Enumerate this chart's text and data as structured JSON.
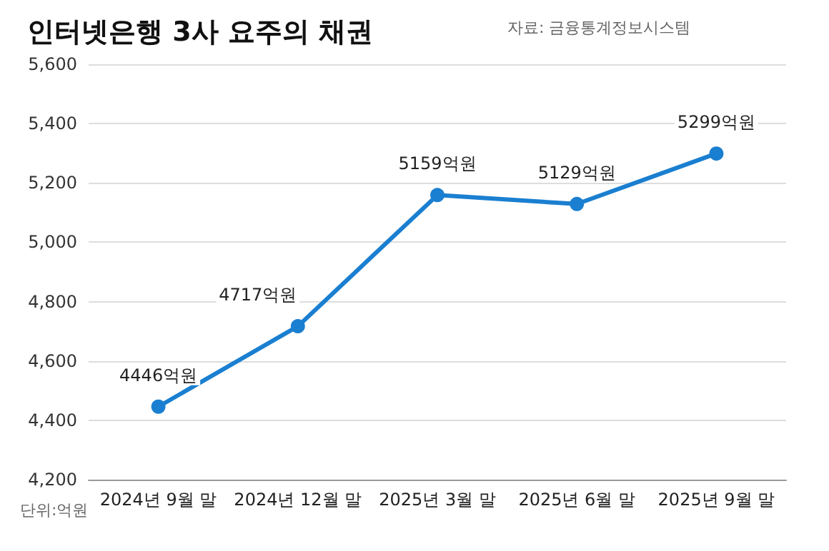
{
  "chart_data": {
    "type": "line",
    "title": "인터넷은행 3사 요주의 채권",
    "annotations": [
      "자료: 금융통계정보시스템",
      "단위:억원"
    ],
    "categories": [
      "2024년 9월 말",
      "2024년 12월 말",
      "2025년 3월 말",
      "2025년 6월 말",
      "2025년 9월 말"
    ],
    "series": [
      {
        "color": "#1a7fd0",
        "values": [
          4446,
          4717,
          5159,
          5129,
          5299
        ],
        "value_labels": [
          "4446억원",
          "4717억원",
          "5159억원",
          "5129억원",
          "5299억원"
        ]
      }
    ],
    "ylim": [
      4200,
      5600
    ],
    "yticks": [
      {
        "value": 4200,
        "label": "4,200"
      },
      {
        "value": 4400,
        "label": "4,400"
      },
      {
        "value": 4600,
        "label": "4,600"
      },
      {
        "value": 4800,
        "label": "4,800"
      },
      {
        "value": 5000,
        "label": "5,000"
      },
      {
        "value": 5200,
        "label": "5,200"
      },
      {
        "value": 5400,
        "label": "5,400"
      },
      {
        "value": 5600,
        "label": "5,600"
      }
    ],
    "grid": "y",
    "marker": "circle",
    "line_style": "solid"
  }
}
